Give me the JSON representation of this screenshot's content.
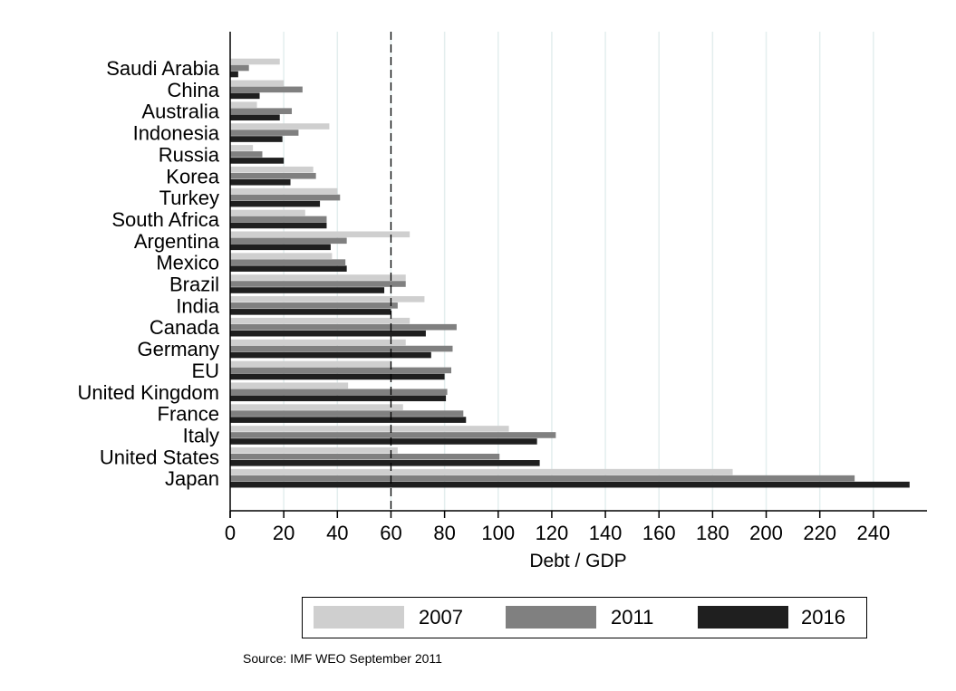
{
  "chart_data": {
    "type": "bar",
    "orientation": "horizontal",
    "categories": [
      "Saudi Arabia",
      "China",
      "Australia",
      "Indonesia",
      "Russia",
      "Korea",
      "Turkey",
      "South Africa",
      "Argentina",
      "Mexico",
      "Brazil",
      "India",
      "Canada",
      "Germany",
      "EU",
      "United Kingdom",
      "France",
      "Italy",
      "United States",
      "Japan"
    ],
    "series": [
      {
        "name": "2007",
        "color": "#cfcfcf",
        "values": [
          18.5,
          20,
          10,
          37,
          8.5,
          31,
          40,
          28,
          67,
          38,
          65.5,
          72.5,
          67,
          65.5,
          60,
          44,
          64.5,
          104,
          62.5,
          187.5
        ]
      },
      {
        "name": "2011",
        "color": "#808080",
        "values": [
          7,
          27,
          23,
          25.5,
          12,
          32,
          41,
          36,
          43.5,
          43,
          65.5,
          62.5,
          84.5,
          83,
          82.5,
          81,
          87,
          121.5,
          100.5,
          233
        ]
      },
      {
        "name": "2016",
        "color": "#1f1f1f",
        "values": [
          3,
          11,
          18.5,
          19.5,
          20,
          22.5,
          33.5,
          36,
          37.5,
          43.5,
          57.5,
          60,
          73,
          75,
          80,
          80.5,
          88,
          114.5,
          115.5,
          253.5
        ]
      }
    ],
    "xlabel": "Debt / GDP",
    "ylabel": "",
    "xlim": [
      0,
      260
    ],
    "xticks": [
      "0",
      "20",
      "40",
      "60",
      "80",
      "100",
      "120",
      "140",
      "160",
      "180",
      "200",
      "220",
      "240"
    ],
    "reference_line": 60,
    "grid": "vertical",
    "legend": "bottom"
  },
  "colors": {
    "grid": "#e3eeee",
    "axis": "#000000"
  },
  "legend": {
    "items": [
      {
        "label": "2007",
        "color": "#cfcfcf"
      },
      {
        "label": "2011",
        "color": "#808080"
      },
      {
        "label": "2016",
        "color": "#1f1f1f"
      }
    ]
  },
  "source": "Source: IMF WEO September 2011"
}
